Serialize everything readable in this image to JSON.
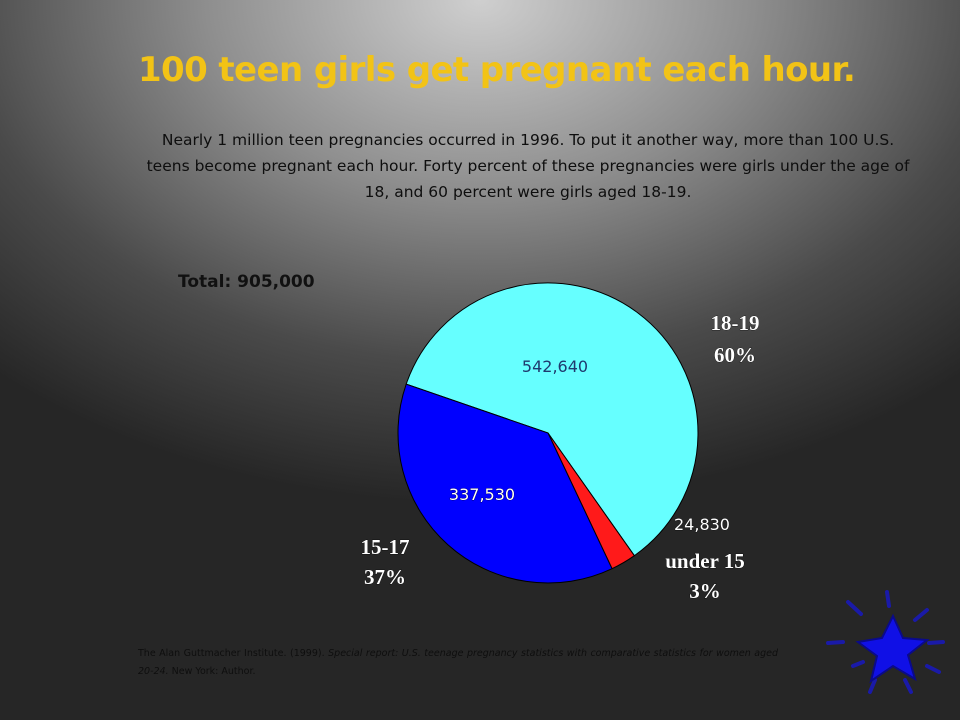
{
  "slide": {
    "title": "100 teen girls get pregnant each hour.",
    "intro": "Nearly 1 million teen pregnancies occurred in 1996.  To put it another way, more than 100 U.S. teens become pregnant each hour.  Forty percent of these pregnancies were  girls under the age of 18, and 60 percent were girls aged 18-19.",
    "total_label": "Total: 905,000",
    "citation": {
      "author": "The Alan Guttmacher Institute. (1999).",
      "work": "Special report: U.S. teenage pregnancy statistics with comparative statistics for women aged 20-24.",
      "publisher": "New York: Author."
    },
    "decoration_icon": "blue-star-icon"
  },
  "chart_data": {
    "type": "pie",
    "title": "",
    "slices": [
      {
        "category": "18-19",
        "percent_label": "60%",
        "value": 542640,
        "value_label": "542,640",
        "color": "#66ffff"
      },
      {
        "category": "under 15",
        "percent_label": "3%",
        "value": 24830,
        "value_label": "24,830",
        "color": "#ff1a1a"
      },
      {
        "category": "15-17",
        "percent_label": "37%",
        "value": 337530,
        "value_label": "337,530",
        "color": "#0000ff"
      }
    ]
  }
}
